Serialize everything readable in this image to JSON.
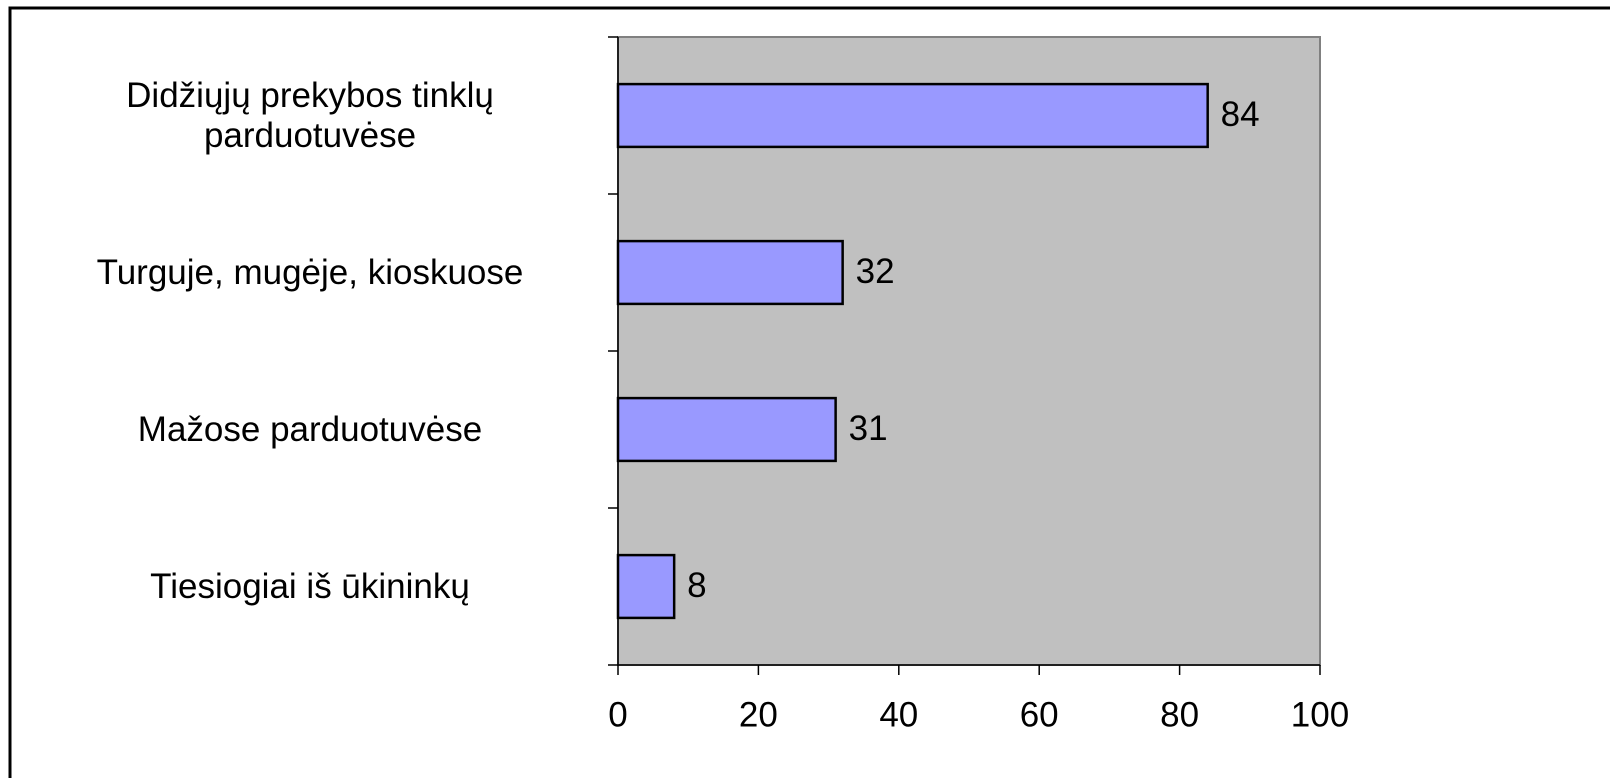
{
  "chart_data": {
    "type": "bar",
    "orientation": "horizontal",
    "categories": [
      "Didžiųjų prekybos tinklų parduotuvėse",
      "Turguje, mugėje, kioskuose",
      "Mažose parduotuvėse",
      "Tiesiogiai iš ūkininkų"
    ],
    "values": [
      84,
      32,
      31,
      8
    ],
    "color": "#9999ff",
    "xlim": [
      0,
      100
    ],
    "xticks": [
      0,
      20,
      40,
      60,
      80,
      100
    ],
    "grid": false
  }
}
